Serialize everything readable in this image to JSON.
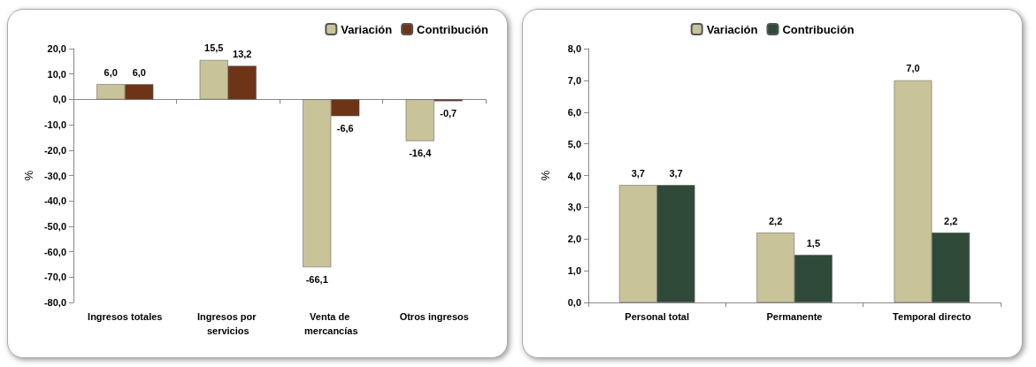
{
  "chart_data": [
    {
      "type": "bar",
      "ylabel": "%",
      "categories": [
        "Ingresos totales",
        "Ingresos por servicios",
        "Venta de mercancías",
        "Otros ingresos"
      ],
      "series": [
        {
          "name": "Variación",
          "color": "#c9c39a",
          "values": [
            6.0,
            15.5,
            -66.1,
            -16.4
          ],
          "value_labels": [
            "6,0",
            "15,5",
            "-66,1",
            "-16,4"
          ]
        },
        {
          "name": "Contribución",
          "color": "#6e3418",
          "values": [
            6.0,
            13.2,
            -6.6,
            -0.7
          ],
          "value_labels": [
            "6,0",
            "13,2",
            "-6,6",
            "-0,7"
          ]
        }
      ],
      "ylim": [
        -80,
        20
      ],
      "yticks": [
        {
          "value": -80,
          "label": "-80,0"
        },
        {
          "value": -70,
          "label": "-70,0"
        },
        {
          "value": -60,
          "label": "-60,0"
        },
        {
          "value": -50,
          "label": "-50,0"
        },
        {
          "value": -40,
          "label": "-40,0"
        },
        {
          "value": -30,
          "label": "-30,0"
        },
        {
          "value": -20,
          "label": "-20,0"
        },
        {
          "value": -10,
          "label": "-10,0"
        },
        {
          "value": 0,
          "label": "0,0"
        },
        {
          "value": 10,
          "label": "10,0"
        },
        {
          "value": 20,
          "label": "20,0"
        }
      ],
      "legend": "top right"
    },
    {
      "type": "bar",
      "ylabel": "%",
      "categories": [
        "Personal total",
        "Permanente",
        "Temporal directo"
      ],
      "series": [
        {
          "name": "Variación",
          "color": "#c9c39a",
          "values": [
            3.7,
            2.2,
            7.0
          ],
          "value_labels": [
            "3,7",
            "2,2",
            "7,0"
          ]
        },
        {
          "name": "Contribución",
          "color": "#2f4a38",
          "values": [
            3.7,
            1.5,
            2.2
          ],
          "value_labels": [
            "3,7",
            "1,5",
            "2,2"
          ]
        }
      ],
      "ylim": [
        0,
        8
      ],
      "yticks": [
        {
          "value": 0,
          "label": "0,0"
        },
        {
          "value": 1,
          "label": "1,0"
        },
        {
          "value": 2,
          "label": "2,0"
        },
        {
          "value": 3,
          "label": "3,0"
        },
        {
          "value": 4,
          "label": "4,0"
        },
        {
          "value": 5,
          "label": "5,0"
        },
        {
          "value": 6,
          "label": "6,0"
        },
        {
          "value": 7,
          "label": "7,0"
        },
        {
          "value": 8,
          "label": "8,0"
        }
      ],
      "legend": "top"
    }
  ]
}
